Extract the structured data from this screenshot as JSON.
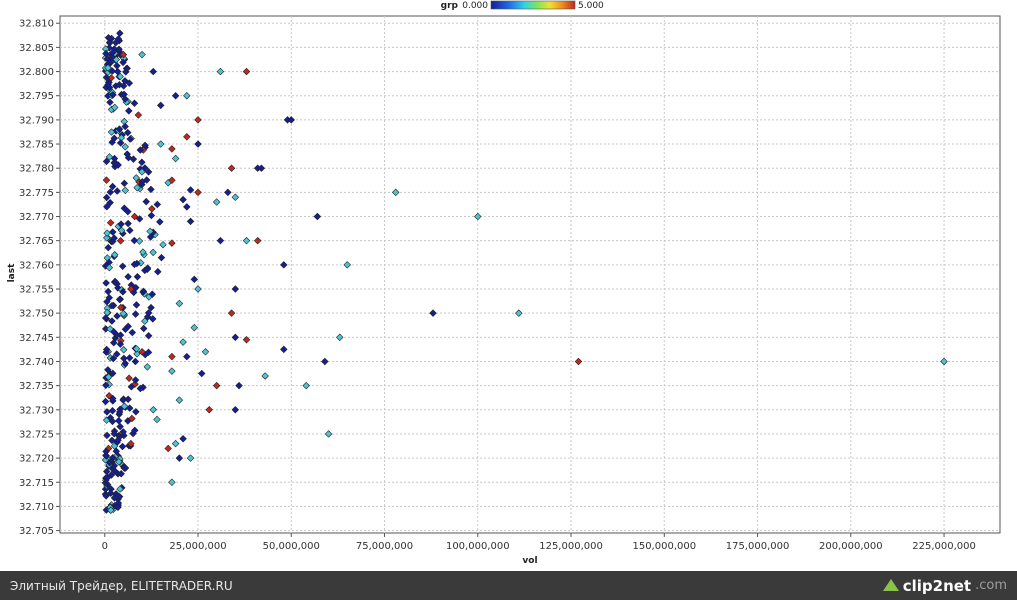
{
  "chart_data": {
    "type": "scatter",
    "xlabel": "vol",
    "ylabel": "last",
    "xlim": [
      -12000000,
      240000000
    ],
    "ylim": [
      32.7045,
      32.8115
    ],
    "x_ticks": [
      0,
      25000000,
      50000000,
      75000000,
      100000000,
      125000000,
      150000000,
      175000000,
      200000000,
      225000000
    ],
    "x_tick_labels": [
      "0",
      "25,000,000",
      "50,000,000",
      "75,000,000",
      "100,000,000",
      "125,000,000",
      "150,000,000",
      "175,000,000",
      "200,000,000",
      "225,000,000"
    ],
    "y_ticks": [
      32.705,
      32.71,
      32.715,
      32.72,
      32.725,
      32.73,
      32.735,
      32.74,
      32.745,
      32.75,
      32.755,
      32.76,
      32.765,
      32.77,
      32.775,
      32.78,
      32.785,
      32.79,
      32.795,
      32.8,
      32.805,
      32.81
    ],
    "y_tick_labels": [
      "32.705",
      "32.710",
      "32.715",
      "32.720",
      "32.725",
      "32.730",
      "32.735",
      "32.740",
      "32.745",
      "32.750",
      "32.755",
      "32.760",
      "32.765",
      "32.770",
      "32.775",
      "32.780",
      "32.785",
      "32.790",
      "32.795",
      "32.800",
      "32.805",
      "32.810"
    ],
    "grid": true,
    "legend": {
      "label": "grp",
      "min_label": "0.000",
      "max_label": "5.000",
      "placement": "top-center"
    },
    "colors": {
      "grp0": "#141e96",
      "grp2": "#4cc3d6",
      "grp5": "#c0281c"
    },
    "points_grp2": [
      [
        31000000,
        32.8
      ],
      [
        10000000,
        32.8035
      ],
      [
        22000000,
        32.795
      ],
      [
        35000000,
        32.774
      ],
      [
        30000000,
        32.773
      ],
      [
        78000000,
        32.775
      ],
      [
        100000000,
        32.77
      ],
      [
        38000000,
        32.765
      ],
      [
        65000000,
        32.76
      ],
      [
        25000000,
        32.755
      ],
      [
        20000000,
        32.752
      ],
      [
        111000000,
        32.75
      ],
      [
        63000000,
        32.745
      ],
      [
        27000000,
        32.742
      ],
      [
        43000000,
        32.737
      ],
      [
        54000000,
        32.735
      ],
      [
        20000000,
        32.732
      ],
      [
        60000000,
        32.725
      ],
      [
        23000000,
        32.72
      ],
      [
        18000000,
        32.715
      ],
      [
        225000000,
        32.74
      ],
      [
        17000000,
        32.777
      ],
      [
        19000000,
        32.782
      ],
      [
        15000000,
        32.785
      ],
      [
        24000000,
        32.747
      ],
      [
        21000000,
        32.744
      ],
      [
        18000000,
        32.738
      ],
      [
        14000000,
        32.728
      ],
      [
        19000000,
        32.723
      ],
      [
        13000000,
        32.73
      ]
    ],
    "points_grp5": [
      [
        38000000,
        32.8
      ],
      [
        5000000,
        32.8035
      ],
      [
        25000000,
        32.79
      ],
      [
        22000000,
        32.7865
      ],
      [
        18000000,
        32.784
      ],
      [
        34000000,
        32.78
      ],
      [
        18000000,
        32.7775
      ],
      [
        25000000,
        32.775
      ],
      [
        8000000,
        32.77
      ],
      [
        18000000,
        32.7645
      ],
      [
        41000000,
        32.765
      ],
      [
        34000000,
        32.75
      ],
      [
        38000000,
        32.7445
      ],
      [
        18000000,
        32.741
      ],
      [
        127000000,
        32.74
      ],
      [
        30000000,
        32.735
      ],
      [
        28000000,
        32.73
      ],
      [
        17000000,
        32.722
      ],
      [
        7000000,
        32.755
      ],
      [
        9000000,
        32.791
      ],
      [
        10000000,
        32.742
      ],
      [
        7000000,
        32.723
      ]
    ],
    "points_grp0": [
      [
        1000000,
        32.807
      ],
      [
        13000000,
        32.8
      ],
      [
        19000000,
        32.795
      ],
      [
        15000000,
        32.793
      ],
      [
        49000000,
        32.79
      ],
      [
        50000000,
        32.79
      ],
      [
        25000000,
        32.785
      ],
      [
        41000000,
        32.78
      ],
      [
        42000000,
        32.78
      ],
      [
        23000000,
        32.7755
      ],
      [
        33000000,
        32.775
      ],
      [
        22000000,
        32.772
      ],
      [
        21000000,
        32.7735
      ],
      [
        57000000,
        32.77
      ],
      [
        23000000,
        32.769
      ],
      [
        31000000,
        32.765
      ],
      [
        48000000,
        32.76
      ],
      [
        24000000,
        32.757
      ],
      [
        35000000,
        32.755
      ],
      [
        88000000,
        32.75
      ],
      [
        35000000,
        32.745
      ],
      [
        48000000,
        32.7425
      ],
      [
        59000000,
        32.74
      ],
      [
        36000000,
        32.735
      ],
      [
        35000000,
        32.73
      ],
      [
        26000000,
        32.7375
      ],
      [
        22000000,
        32.741
      ],
      [
        21000000,
        32.724
      ],
      [
        20000000,
        32.72
      ]
    ]
  },
  "footer": {
    "caption": "Элитный Трейдер, ELITETRADER.RU",
    "brand_name": "clip2net",
    "brand_domain": ".com",
    "icon": "upload-arrow-icon"
  }
}
